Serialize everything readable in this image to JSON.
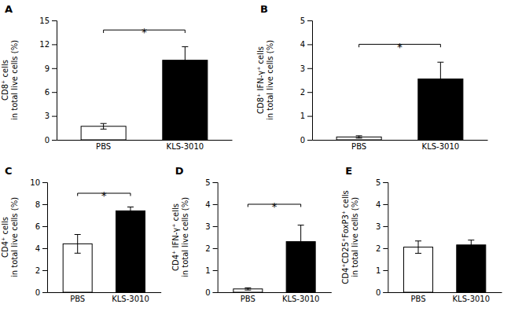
{
  "chart_data": [
    {
      "type": "bar",
      "title": "A",
      "ylabel": "CD8⁺ cells\nin total live cells (%)",
      "categories": [
        "PBS",
        "KLS-3010"
      ],
      "values": [
        1.7,
        10.0
      ],
      "errors": [
        0.35,
        1.7
      ],
      "colors": [
        "white",
        "black"
      ],
      "ylim": [
        0,
        15
      ],
      "yticks": [
        0,
        3,
        6,
        9,
        12,
        15
      ],
      "grid": false,
      "annotations": [
        {
          "text": "*",
          "y": 13.8
        }
      ]
    },
    {
      "type": "bar",
      "title": "B",
      "ylabel": "CD8⁺ IFN-γ⁺ cells\nin total live cells (%)",
      "categories": [
        "PBS",
        "KLS-3010"
      ],
      "values": [
        0.12,
        2.55
      ],
      "errors": [
        0.05,
        0.7
      ],
      "colors": [
        "white",
        "black"
      ],
      "ylim": [
        0,
        5
      ],
      "yticks": [
        0,
        1,
        2,
        3,
        4,
        5
      ],
      "grid": false,
      "annotations": [
        {
          "text": "*",
          "y": 4.0
        }
      ]
    },
    {
      "type": "bar",
      "title": "C",
      "ylabel": "CD4⁺ cells\nin total live cells (%)",
      "categories": [
        "PBS",
        "KLS-3010"
      ],
      "values": [
        4.4,
        7.4
      ],
      "errors": [
        0.85,
        0.35
      ],
      "colors": [
        "white",
        "black"
      ],
      "ylim": [
        0,
        10
      ],
      "yticks": [
        0,
        2,
        4,
        6,
        8,
        10
      ],
      "grid": false,
      "annotations": [
        {
          "text": "*",
          "y": 9.0
        }
      ]
    },
    {
      "type": "bar",
      "title": "D",
      "ylabel": "CD4⁺ IFN-γ⁺ cells\nin total live cells (%)",
      "categories": [
        "PBS",
        "KLS-3010"
      ],
      "values": [
        0.15,
        2.3
      ],
      "errors": [
        0.05,
        0.75
      ],
      "colors": [
        "white",
        "black"
      ],
      "ylim": [
        0,
        5
      ],
      "yticks": [
        0,
        1,
        2,
        3,
        4,
        5
      ],
      "grid": false,
      "annotations": [
        {
          "text": "*",
          "y": 4.0
        }
      ]
    },
    {
      "type": "bar",
      "title": "E",
      "ylabel": "CD4⁺CD25⁺FoxP3⁺ cells\nin total live cells (%)",
      "categories": [
        "PBS",
        "KLS-3010"
      ],
      "values": [
        2.05,
        2.15
      ],
      "errors": [
        0.28,
        0.22
      ],
      "colors": [
        "white",
        "black"
      ],
      "ylim": [
        0,
        5
      ],
      "yticks": [
        0,
        1,
        2,
        3,
        4,
        5
      ],
      "grid": false,
      "annotations": []
    }
  ]
}
